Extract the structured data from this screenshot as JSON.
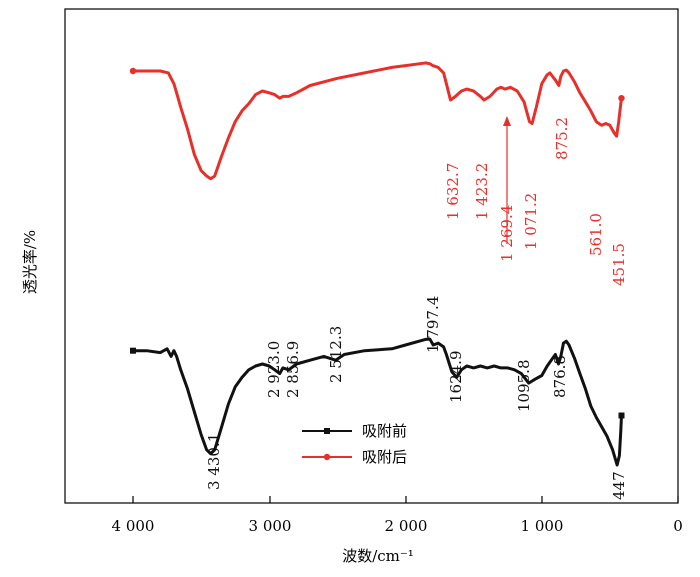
{
  "chart_data": {
    "type": "line",
    "title": "",
    "xlabel": "波数/cm⁻¹",
    "ylabel": "透光率/%",
    "xlim": [
      4500,
      0
    ],
    "x_ticks": [
      4000,
      3000,
      2000,
      1000,
      0
    ],
    "x_tick_labels": [
      "4 000",
      "3 000",
      "2 000",
      "1 000",
      "0"
    ],
    "y_ticks_shown": false,
    "legend": {
      "placement": "center-bottom",
      "entries": [
        "吸附前",
        "吸附后"
      ]
    },
    "series": [
      {
        "name": "吸附前",
        "color": "#111111",
        "marker": "square",
        "points": [
          [
            4000,
            0.6
          ],
          [
            3900,
            0.6
          ],
          [
            3800,
            0.59
          ],
          [
            3750,
            0.61
          ],
          [
            3720,
            0.57
          ],
          [
            3700,
            0.6
          ],
          [
            3680,
            0.57
          ],
          [
            3650,
            0.5
          ],
          [
            3600,
            0.4
          ],
          [
            3550,
            0.28
          ],
          [
            3500,
            0.16
          ],
          [
            3460,
            0.08
          ],
          [
            3430,
            0.06
          ],
          [
            3400,
            0.08
          ],
          [
            3350,
            0.2
          ],
          [
            3300,
            0.32
          ],
          [
            3250,
            0.41
          ],
          [
            3200,
            0.46
          ],
          [
            3150,
            0.5
          ],
          [
            3100,
            0.52
          ],
          [
            3050,
            0.53
          ],
          [
            3000,
            0.52
          ],
          [
            2960,
            0.5
          ],
          [
            2923,
            0.48
          ],
          [
            2900,
            0.51
          ],
          [
            2857,
            0.5
          ],
          [
            2800,
            0.53
          ],
          [
            2700,
            0.55
          ],
          [
            2600,
            0.57
          ],
          [
            2512,
            0.55
          ],
          [
            2450,
            0.58
          ],
          [
            2300,
            0.6
          ],
          [
            2100,
            0.61
          ],
          [
            2000,
            0.63
          ],
          [
            1900,
            0.65
          ],
          [
            1850,
            0.66
          ],
          [
            1820,
            0.66
          ],
          [
            1797,
            0.63
          ],
          [
            1760,
            0.64
          ],
          [
            1720,
            0.62
          ],
          [
            1700,
            0.58
          ],
          [
            1660,
            0.49
          ],
          [
            1625,
            0.46
          ],
          [
            1590,
            0.5
          ],
          [
            1550,
            0.52
          ],
          [
            1500,
            0.51
          ],
          [
            1450,
            0.52
          ],
          [
            1400,
            0.51
          ],
          [
            1350,
            0.52
          ],
          [
            1300,
            0.51
          ],
          [
            1250,
            0.51
          ],
          [
            1200,
            0.5
          ],
          [
            1150,
            0.48
          ],
          [
            1096,
            0.43
          ],
          [
            1050,
            0.45
          ],
          [
            1000,
            0.47
          ],
          [
            960,
            0.52
          ],
          [
            920,
            0.56
          ],
          [
            900,
            0.58
          ],
          [
            877,
            0.53
          ],
          [
            860,
            0.57
          ],
          [
            840,
            0.64
          ],
          [
            820,
            0.65
          ],
          [
            800,
            0.63
          ],
          [
            760,
            0.56
          ],
          [
            720,
            0.48
          ],
          [
            680,
            0.4
          ],
          [
            640,
            0.31
          ],
          [
            600,
            0.25
          ],
          [
            560,
            0.2
          ],
          [
            520,
            0.15
          ],
          [
            480,
            0.08
          ],
          [
            447,
            0.0
          ],
          [
            430,
            0.05
          ],
          [
            420,
            0.18
          ],
          [
            415,
            0.26
          ]
        ],
        "peak_labels": [
          "3 430.1",
          "2 923.0",
          "2 856.9",
          "2 512.3",
          "1 797.4",
          "1624.9",
          "1095.8",
          "876.8",
          "447"
        ]
      },
      {
        "name": "吸附后",
        "color": "#e8302a",
        "marker": "circle",
        "points": [
          [
            4000,
            1.0
          ],
          [
            3900,
            1.0
          ],
          [
            3800,
            1.0
          ],
          [
            3740,
            0.99
          ],
          [
            3720,
            0.96
          ],
          [
            3700,
            0.93
          ],
          [
            3680,
            0.88
          ],
          [
            3650,
            0.8
          ],
          [
            3600,
            0.68
          ],
          [
            3550,
            0.54
          ],
          [
            3500,
            0.45
          ],
          [
            3460,
            0.42
          ],
          [
            3430,
            0.405
          ],
          [
            3400,
            0.42
          ],
          [
            3350,
            0.53
          ],
          [
            3300,
            0.63
          ],
          [
            3250,
            0.72
          ],
          [
            3200,
            0.78
          ],
          [
            3150,
            0.82
          ],
          [
            3100,
            0.87
          ],
          [
            3050,
            0.89
          ],
          [
            3000,
            0.88
          ],
          [
            2960,
            0.87
          ],
          [
            2923,
            0.85
          ],
          [
            2900,
            0.86
          ],
          [
            2857,
            0.86
          ],
          [
            2800,
            0.88
          ],
          [
            2700,
            0.92
          ],
          [
            2500,
            0.96
          ],
          [
            2300,
            0.99
          ],
          [
            2100,
            1.02
          ],
          [
            2000,
            1.03
          ],
          [
            1900,
            1.04
          ],
          [
            1850,
            1.045
          ],
          [
            1820,
            1.04
          ],
          [
            1800,
            1.03
          ],
          [
            1760,
            1.02
          ],
          [
            1720,
            0.99
          ],
          [
            1700,
            0.93
          ],
          [
            1670,
            0.84
          ],
          [
            1633,
            0.86
          ],
          [
            1590,
            0.89
          ],
          [
            1550,
            0.9
          ],
          [
            1500,
            0.89
          ],
          [
            1450,
            0.86
          ],
          [
            1423,
            0.84
          ],
          [
            1380,
            0.86
          ],
          [
            1330,
            0.9
          ],
          [
            1300,
            0.91
          ],
          [
            1269,
            0.9
          ],
          [
            1230,
            0.91
          ],
          [
            1180,
            0.89
          ],
          [
            1130,
            0.83
          ],
          [
            1090,
            0.72
          ],
          [
            1071,
            0.71
          ],
          [
            1040,
            0.8
          ],
          [
            1000,
            0.93
          ],
          [
            960,
            0.98
          ],
          [
            940,
            0.99
          ],
          [
            920,
            0.97
          ],
          [
            900,
            0.95
          ],
          [
            875,
            0.92
          ],
          [
            860,
            0.97
          ],
          [
            840,
            1.0
          ],
          [
            820,
            1.005
          ],
          [
            800,
            0.99
          ],
          [
            760,
            0.94
          ],
          [
            720,
            0.88
          ],
          [
            680,
            0.83
          ],
          [
            640,
            0.78
          ],
          [
            600,
            0.72
          ],
          [
            561,
            0.7
          ],
          [
            530,
            0.71
          ],
          [
            500,
            0.7
          ],
          [
            470,
            0.66
          ],
          [
            451,
            0.64
          ],
          [
            435,
            0.72
          ],
          [
            420,
            0.82
          ],
          [
            415,
            0.85
          ]
        ],
        "peak_labels": [
          "1 632.7",
          "1 423.2",
          "1 269.4",
          "1 071.2",
          "875.2",
          "561.0",
          "451.5"
        ]
      }
    ]
  }
}
